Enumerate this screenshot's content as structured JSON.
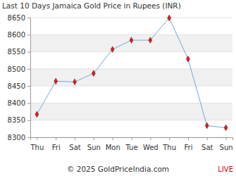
{
  "chart_data": {
    "type": "line",
    "title": "Last 10 Days Jamaica Gold Price in Rupees (INR)",
    "categories": [
      "Thu",
      "Fri",
      "Sat",
      "Sun",
      "Mon",
      "Tue",
      "Wed",
      "Thu",
      "Fri",
      "Sat",
      "Sun"
    ],
    "values": [
      8367,
      8464,
      8462,
      8487,
      8557,
      8584,
      8584,
      8649,
      8529,
      8334,
      8328
    ],
    "color": "#6fa8dc",
    "marker": "diamond",
    "ylim": [
      8300,
      8650
    ],
    "yticks": [
      8300,
      8350,
      8400,
      8450,
      8500,
      8550,
      8600,
      8650
    ],
    "grid": true,
    "annotations": [
      "© 2025 GoldPriceIndia.com",
      "LIVE"
    ]
  }
}
